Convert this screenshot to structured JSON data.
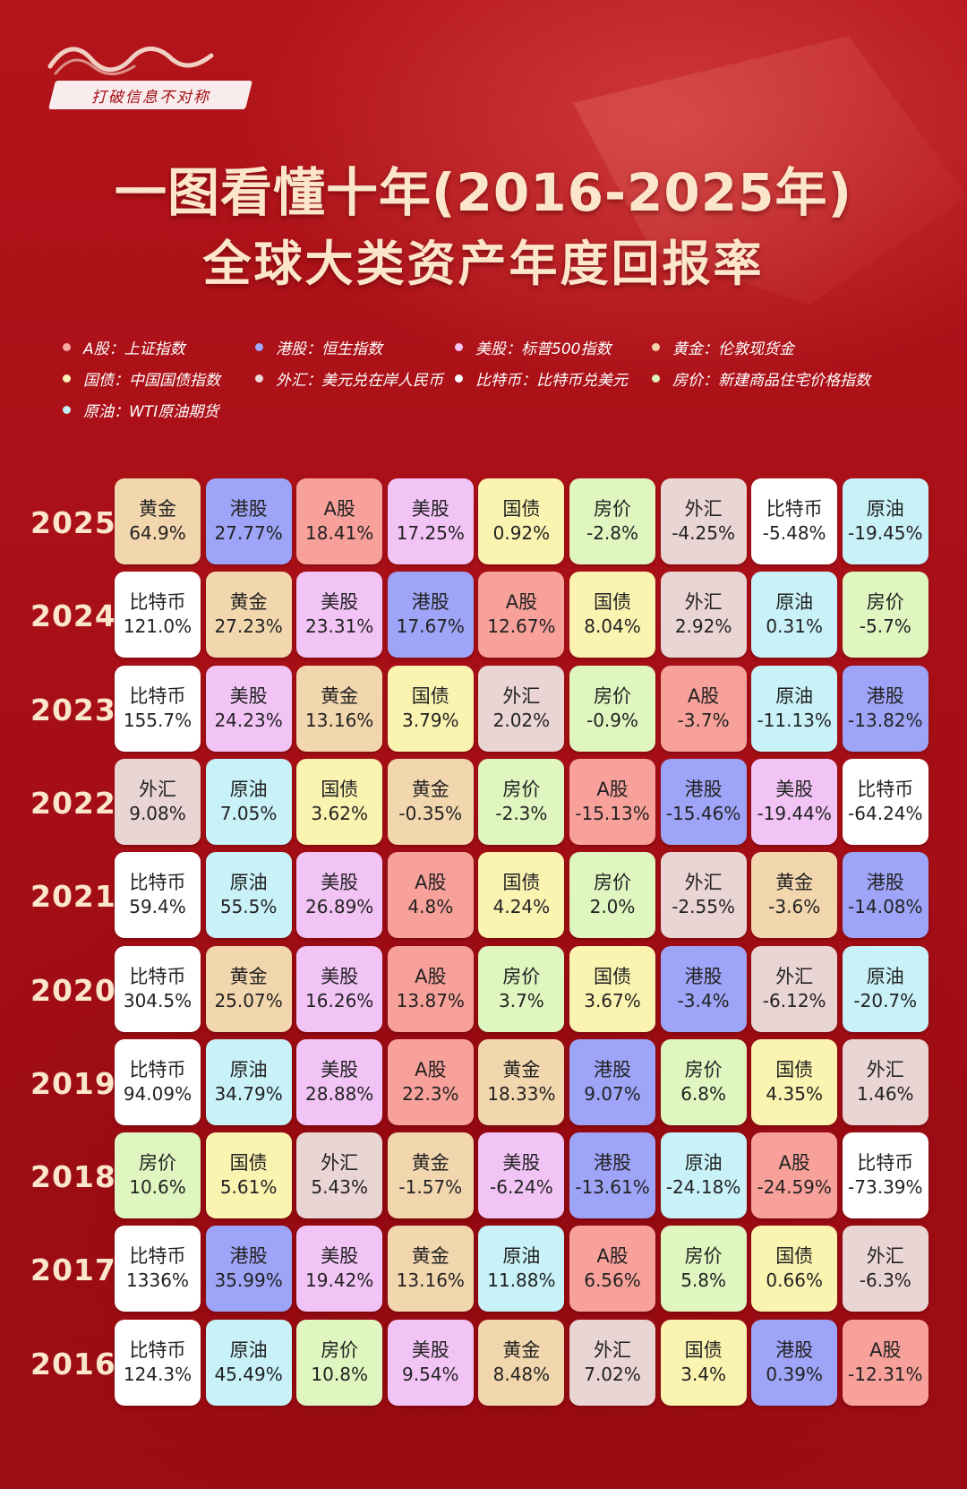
{
  "brand": {
    "tagline": "打破信息不对称"
  },
  "title": {
    "line1": "一图看懂十年(2016-2025年)",
    "line2": "全球大类资产年度回报率"
  },
  "legend": [
    {
      "text": "A股：上证指数",
      "color": "#f6a7a0"
    },
    {
      "text": "港股：恒生指数",
      "color": "#a0a8ff"
    },
    {
      "text": "美股：标普500指数",
      "color": "#f5c4f5"
    },
    {
      "text": "黄金：伦敦现货金",
      "color": "#f3d2a6"
    },
    {
      "text": "国债：中国国债指数",
      "color": "#fbf0b2"
    },
    {
      "text": "外汇：美元兑在岸人民币",
      "color": "#ecd8d6"
    },
    {
      "text": "比特币：比特币兑美元",
      "color": "#ffffff"
    },
    {
      "text": "房价：新建商品住宅价格指数",
      "color": "#dcf5b8"
    },
    {
      "text": "原油：WTI原油期货",
      "color": "#c4eff7"
    }
  ],
  "asset_colors": {
    "A股": "#f8a19b",
    "港股": "#9ea4f7",
    "美股": "#f2c4f6",
    "黄金": "#f2d6ae",
    "国债": "#fbf3b0",
    "外汇": "#e9d5d3",
    "比特币": "#ffffff",
    "房价": "#dff6c0",
    "原油": "#c8f1f8"
  },
  "chart_data": {
    "type": "table",
    "title": "一图看懂十年(2016-2025年) 全球大类资产年度回报率",
    "unit": "%",
    "rows": [
      {
        "year": "2025",
        "cells": [
          {
            "asset": "黄金",
            "label": "64.9%",
            "value": 64.9
          },
          {
            "asset": "港股",
            "label": "27.77%",
            "value": 27.77
          },
          {
            "asset": "A股",
            "label": "18.41%",
            "value": 18.41
          },
          {
            "asset": "美股",
            "label": "17.25%",
            "value": 17.25
          },
          {
            "asset": "国债",
            "label": "0.92%",
            "value": 0.92
          },
          {
            "asset": "房价",
            "label": "-2.8%",
            "value": -2.8
          },
          {
            "asset": "外汇",
            "label": "-4.25%",
            "value": -4.25
          },
          {
            "asset": "比特币",
            "label": "-5.48%",
            "value": -5.48
          },
          {
            "asset": "原油",
            "label": "-19.45%",
            "value": -19.45
          }
        ]
      },
      {
        "year": "2024",
        "cells": [
          {
            "asset": "比特币",
            "label": "121.0%",
            "value": 121.0
          },
          {
            "asset": "黄金",
            "label": "27.23%",
            "value": 27.23
          },
          {
            "asset": "美股",
            "label": "23.31%",
            "value": 23.31
          },
          {
            "asset": "港股",
            "label": "17.67%",
            "value": 17.67
          },
          {
            "asset": "A股",
            "label": "12.67%",
            "value": 12.67
          },
          {
            "asset": "国债",
            "label": "8.04%",
            "value": 8.04
          },
          {
            "asset": "外汇",
            "label": "2.92%",
            "value": 2.92
          },
          {
            "asset": "原油",
            "label": "0.31%",
            "value": 0.31
          },
          {
            "asset": "房价",
            "label": "-5.7%",
            "value": -5.7
          }
        ]
      },
      {
        "year": "2023",
        "cells": [
          {
            "asset": "比特币",
            "label": "155.7%",
            "value": 155.7
          },
          {
            "asset": "美股",
            "label": "24.23%",
            "value": 24.23
          },
          {
            "asset": "黄金",
            "label": "13.16%",
            "value": 13.16
          },
          {
            "asset": "国债",
            "label": "3.79%",
            "value": 3.79
          },
          {
            "asset": "外汇",
            "label": "2.02%",
            "value": 2.02
          },
          {
            "asset": "房价",
            "label": "-0.9%",
            "value": -0.9
          },
          {
            "asset": "A股",
            "label": "-3.7%",
            "value": -3.7
          },
          {
            "asset": "原油",
            "label": "-11.13%",
            "value": -11.13
          },
          {
            "asset": "港股",
            "label": "-13.82%",
            "value": -13.82
          }
        ]
      },
      {
        "year": "2022",
        "cells": [
          {
            "asset": "外汇",
            "label": "9.08%",
            "value": 9.08
          },
          {
            "asset": "原油",
            "label": "7.05%",
            "value": 7.05
          },
          {
            "asset": "国债",
            "label": "3.62%",
            "value": 3.62
          },
          {
            "asset": "黄金",
            "label": "-0.35%",
            "value": -0.35
          },
          {
            "asset": "房价",
            "label": "-2.3%",
            "value": -2.3
          },
          {
            "asset": "A股",
            "label": "-15.13%",
            "value": -15.13
          },
          {
            "asset": "港股",
            "label": "-15.46%",
            "value": -15.46
          },
          {
            "asset": "美股",
            "label": "-19.44%",
            "value": -19.44
          },
          {
            "asset": "比特币",
            "label": "-64.24%",
            "value": -64.24
          }
        ]
      },
      {
        "year": "2021",
        "cells": [
          {
            "asset": "比特币",
            "label": "59.4%",
            "value": 59.4
          },
          {
            "asset": "原油",
            "label": "55.5%",
            "value": 55.5
          },
          {
            "asset": "美股",
            "label": "26.89%",
            "value": 26.89
          },
          {
            "asset": "A股",
            "label": "4.8%",
            "value": 4.8
          },
          {
            "asset": "国债",
            "label": "4.24%",
            "value": 4.24
          },
          {
            "asset": "房价",
            "label": "2.0%",
            "value": 2.0
          },
          {
            "asset": "外汇",
            "label": "-2.55%",
            "value": -2.55
          },
          {
            "asset": "黄金",
            "label": "-3.6%",
            "value": -3.6
          },
          {
            "asset": "港股",
            "label": "-14.08%",
            "value": -14.08
          }
        ]
      },
      {
        "year": "2020",
        "cells": [
          {
            "asset": "比特币",
            "label": "304.5%",
            "value": 304.5
          },
          {
            "asset": "黄金",
            "label": "25.07%",
            "value": 25.07
          },
          {
            "asset": "美股",
            "label": "16.26%",
            "value": 16.26
          },
          {
            "asset": "A股",
            "label": "13.87%",
            "value": 13.87
          },
          {
            "asset": "房价",
            "label": "3.7%",
            "value": 3.7
          },
          {
            "asset": "国债",
            "label": "3.67%",
            "value": 3.67
          },
          {
            "asset": "港股",
            "label": "-3.4%",
            "value": -3.4
          },
          {
            "asset": "外汇",
            "label": "-6.12%",
            "value": -6.12
          },
          {
            "asset": "原油",
            "label": "-20.7%",
            "value": -20.7
          }
        ]
      },
      {
        "year": "2019",
        "cells": [
          {
            "asset": "比特币",
            "label": "94.09%",
            "value": 94.09
          },
          {
            "asset": "原油",
            "label": "34.79%",
            "value": 34.79
          },
          {
            "asset": "美股",
            "label": "28.88%",
            "value": 28.88
          },
          {
            "asset": "A股",
            "label": "22.3%",
            "value": 22.3
          },
          {
            "asset": "黄金",
            "label": "18.33%",
            "value": 18.33
          },
          {
            "asset": "港股",
            "label": "9.07%",
            "value": 9.07
          },
          {
            "asset": "房价",
            "label": "6.8%",
            "value": 6.8
          },
          {
            "asset": "国债",
            "label": "4.35%",
            "value": 4.35
          },
          {
            "asset": "外汇",
            "label": "1.46%",
            "value": 1.46
          }
        ]
      },
      {
        "year": "2018",
        "cells": [
          {
            "asset": "房价",
            "label": "10.6%",
            "value": 10.6
          },
          {
            "asset": "国债",
            "label": "5.61%",
            "value": 5.61
          },
          {
            "asset": "外汇",
            "label": "5.43%",
            "value": 5.43
          },
          {
            "asset": "黄金",
            "label": "-1.57%",
            "value": -1.57
          },
          {
            "asset": "美股",
            "label": "-6.24%",
            "value": -6.24
          },
          {
            "asset": "港股",
            "label": "-13.61%",
            "value": -13.61
          },
          {
            "asset": "原油",
            "label": "-24.18%",
            "value": -24.18
          },
          {
            "asset": "A股",
            "label": "-24.59%",
            "value": -24.59
          },
          {
            "asset": "比特币",
            "label": "-73.39%",
            "value": -73.39
          }
        ]
      },
      {
        "year": "2017",
        "cells": [
          {
            "asset": "比特币",
            "label": "1336%",
            "value": 1336
          },
          {
            "asset": "港股",
            "label": "35.99%",
            "value": 35.99
          },
          {
            "asset": "美股",
            "label": "19.42%",
            "value": 19.42
          },
          {
            "asset": "黄金",
            "label": "13.16%",
            "value": 13.16
          },
          {
            "asset": "原油",
            "label": "11.88%",
            "value": 11.88
          },
          {
            "asset": "A股",
            "label": "6.56%",
            "value": 6.56
          },
          {
            "asset": "房价",
            "label": "5.8%",
            "value": 5.8
          },
          {
            "asset": "国债",
            "label": "0.66%",
            "value": 0.66
          },
          {
            "asset": "外汇",
            "label": "-6.3%",
            "value": -6.3
          }
        ]
      },
      {
        "year": "2016",
        "cells": [
          {
            "asset": "比特币",
            "label": "124.3%",
            "value": 124.3
          },
          {
            "asset": "原油",
            "label": "45.49%",
            "value": 45.49
          },
          {
            "asset": "房价",
            "label": "10.8%",
            "value": 10.8
          },
          {
            "asset": "美股",
            "label": "9.54%",
            "value": 9.54
          },
          {
            "asset": "黄金",
            "label": "8.48%",
            "value": 8.48
          },
          {
            "asset": "外汇",
            "label": "7.02%",
            "value": 7.02
          },
          {
            "asset": "国债",
            "label": "3.4%",
            "value": 3.4
          },
          {
            "asset": "港股",
            "label": "0.39%",
            "value": 0.39
          },
          {
            "asset": "A股",
            "label": "-12.31%",
            "value": -12.31
          }
        ]
      }
    ]
  }
}
